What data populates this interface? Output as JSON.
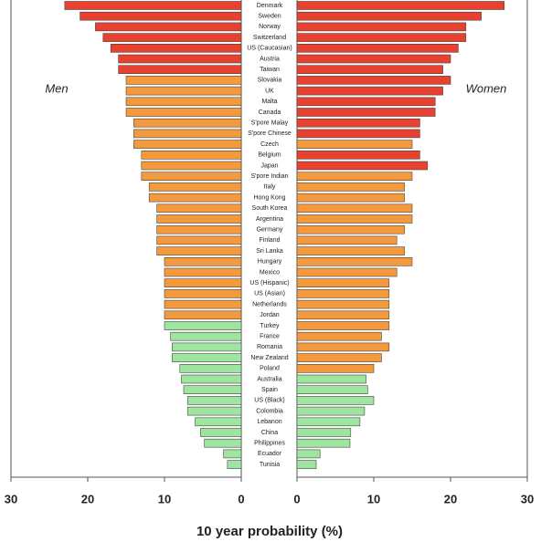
{
  "chart_data": {
    "type": "bar",
    "xlabel": "10 year probability (%)",
    "categories": [
      "Denmark",
      "Sweden",
      "Norway",
      "Switzerland",
      "US (Caucasian)",
      "Austria",
      "Taiwan",
      "Slovakia",
      "UK",
      "Malta",
      "Canada",
      "S'pore Malay",
      "S'pore Chinese",
      "Czech",
      "Belgium",
      "Japan",
      "S'pore Indian",
      "Italy",
      "Hong Kong",
      "South Korea",
      "Argentina",
      "Germany",
      "Finland",
      "Sri Lanka",
      "Hungary",
      "Mexico",
      "US (Hispanic)",
      "US (Asian)",
      "Netherlands",
      "Jordan",
      "Turkey",
      "France",
      "Romania",
      "New Zealand",
      "Poland",
      "Australia",
      "Spain",
      "US (Black)",
      "Colombia",
      "Lebanon",
      "China",
      "Philippines",
      "Ecuador",
      "Tunisia"
    ],
    "series": [
      {
        "name": "Men",
        "values": [
          23,
          21,
          19,
          18,
          17,
          16,
          16,
          15,
          15,
          15,
          15,
          14,
          14,
          14,
          13,
          13,
          13,
          12,
          12,
          11,
          11,
          11,
          11,
          11,
          10,
          10,
          10,
          10,
          10,
          10,
          10,
          9.2,
          9,
          9,
          8,
          7.8,
          7.5,
          7,
          7,
          6,
          5.3,
          4.8,
          2.3,
          1.8
        ],
        "colors": [
          "#e8412f",
          "#e8412f",
          "#e8412f",
          "#e8412f",
          "#e8412f",
          "#e8412f",
          "#e8412f",
          "#f59a3c",
          "#f59a3c",
          "#f59a3c",
          "#f59a3c",
          "#f59a3c",
          "#f59a3c",
          "#f59a3c",
          "#f59a3c",
          "#f59a3c",
          "#f59a3c",
          "#f59a3c",
          "#f59a3c",
          "#f59a3c",
          "#f59a3c",
          "#f59a3c",
          "#f59a3c",
          "#f59a3c",
          "#f59a3c",
          "#f59a3c",
          "#f59a3c",
          "#f59a3c",
          "#f59a3c",
          "#f59a3c",
          "#9ee6a0",
          "#9ee6a0",
          "#9ee6a0",
          "#9ee6a0",
          "#9ee6a0",
          "#9ee6a0",
          "#9ee6a0",
          "#9ee6a0",
          "#9ee6a0",
          "#9ee6a0",
          "#9ee6a0",
          "#9ee6a0",
          "#9ee6a0",
          "#9ee6a0"
        ]
      },
      {
        "name": "Women",
        "values": [
          27,
          24,
          22,
          22,
          21,
          20,
          19,
          20,
          19,
          18,
          18,
          16,
          16,
          15,
          16,
          17,
          15,
          14,
          14,
          15,
          15,
          14,
          13,
          14,
          15,
          13,
          12,
          12,
          12,
          12,
          12,
          11,
          12,
          11,
          10,
          9,
          9.2,
          10,
          8.8,
          8.2,
          7,
          6.9,
          3,
          2.5
        ],
        "colors": [
          "#e8412f",
          "#e8412f",
          "#e8412f",
          "#e8412f",
          "#e8412f",
          "#e8412f",
          "#e8412f",
          "#e8412f",
          "#e8412f",
          "#e8412f",
          "#e8412f",
          "#e8412f",
          "#e8412f",
          "#f59a3c",
          "#e8412f",
          "#e8412f",
          "#f59a3c",
          "#f59a3c",
          "#f59a3c",
          "#f59a3c",
          "#f59a3c",
          "#f59a3c",
          "#f59a3c",
          "#f59a3c",
          "#f59a3c",
          "#f59a3c",
          "#f59a3c",
          "#f59a3c",
          "#f59a3c",
          "#f59a3c",
          "#f59a3c",
          "#f59a3c",
          "#f59a3c",
          "#f59a3c",
          "#f59a3c",
          "#9ee6a0",
          "#9ee6a0",
          "#9ee6a0",
          "#9ee6a0",
          "#9ee6a0",
          "#9ee6a0",
          "#9ee6a0",
          "#9ee6a0",
          "#9ee6a0"
        ]
      }
    ],
    "xlim": [
      0,
      30
    ],
    "xticks": [
      0,
      10,
      20,
      30
    ]
  }
}
